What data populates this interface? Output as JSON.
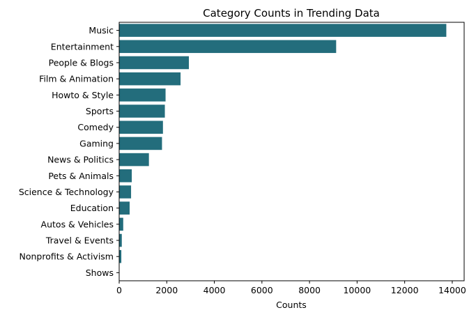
{
  "chart_data": {
    "type": "bar",
    "orientation": "horizontal",
    "title": "Category Counts in Trending Data",
    "xlabel": "Counts",
    "ylabel": "",
    "xlim": [
      0,
      14500
    ],
    "xticks": [
      0,
      2000,
      4000,
      6000,
      8000,
      10000,
      12000,
      14000
    ],
    "grid": false,
    "bar_color": "#236d7c",
    "categories": [
      "Music",
      "Entertainment",
      "People & Blogs",
      "Film & Animation",
      "Howto & Style",
      "Sports",
      "Comedy",
      "Gaming",
      "News & Politics",
      "Pets & Animals",
      "Science & Technology",
      "Education",
      "Autos & Vehicles",
      "Travel & Events",
      "Nonprofits & Activism",
      "Shows"
    ],
    "values": [
      13750,
      9120,
      2930,
      2580,
      1950,
      1920,
      1840,
      1800,
      1250,
      530,
      500,
      440,
      170,
      110,
      90,
      10
    ]
  }
}
